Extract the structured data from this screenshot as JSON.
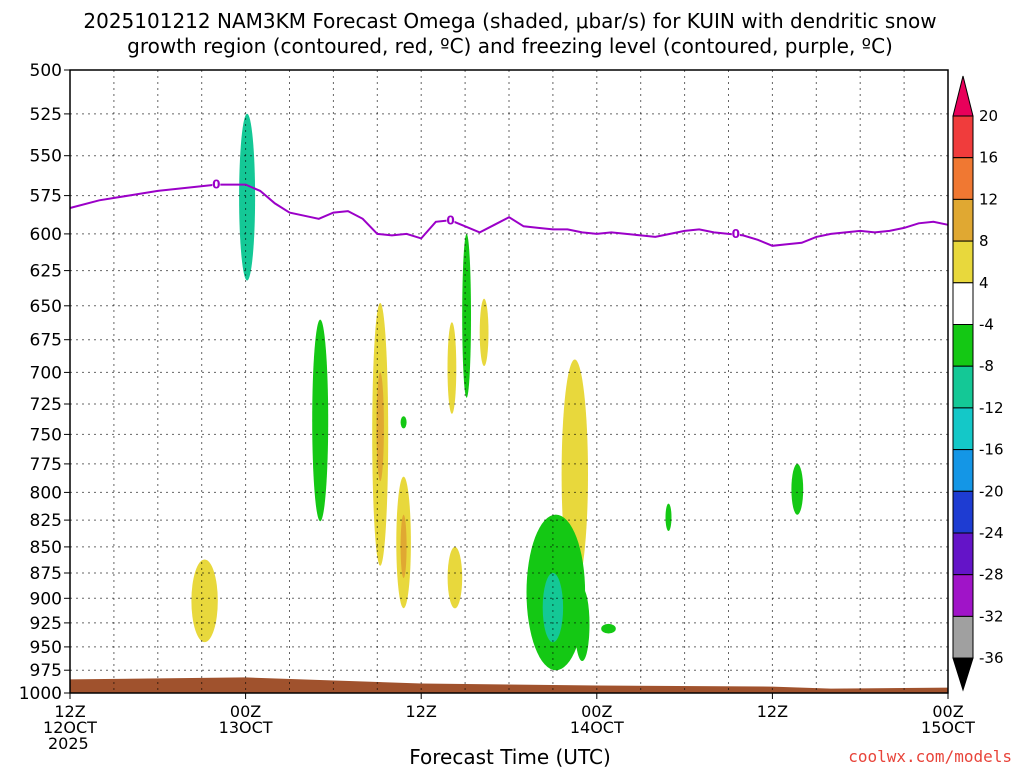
{
  "chart_data": {
    "type": "time-height",
    "title": "2025101212 NAM3KM Forecast Omega (shaded, μbar/s) for KUIN with dendritic snow",
    "subtitle": "growth region (contoured, red, ºC) and freezing level (contoured, purple, ºC)",
    "xlabel": "Forecast Time (UTC)",
    "credit": "coolwx.com/models",
    "y_ticks": [
      "500",
      "525",
      "550",
      "575",
      "600",
      "625",
      "650",
      "675",
      "700",
      "725",
      "750",
      "775",
      "800",
      "825",
      "850",
      "875",
      "900",
      "925",
      "950",
      "975",
      "1000"
    ],
    "y_range_mb": [
      500,
      1000
    ],
    "y_scale": "log-pressure",
    "x_range_hours": [
      0,
      60
    ],
    "x_ticks": [
      {
        "hour": 0,
        "line1": "12Z",
        "line2": "12OCT",
        "line3": "2025"
      },
      {
        "hour": 12,
        "line1": "00Z",
        "line2": "13OCT",
        "line3": ""
      },
      {
        "hour": 24,
        "line1": "12Z",
        "line2": "",
        "line3": ""
      },
      {
        "hour": 36,
        "line1": "00Z",
        "line2": "14OCT",
        "line3": ""
      },
      {
        "hour": 48,
        "line1": "12Z",
        "line2": "",
        "line3": ""
      },
      {
        "hour": 60,
        "line1": "00Z",
        "line2": "15OCT",
        "line3": ""
      }
    ],
    "grid": true,
    "colorbar": {
      "levels": [
        "20",
        "16",
        "12",
        "8",
        "4",
        "-4",
        "-8",
        "-12",
        "-16",
        "-20",
        "-24",
        "-28",
        "-32",
        "-36"
      ],
      "colors": [
        "#e8005a",
        "#f03c3c",
        "#f07832",
        "#e0a832",
        "#e8d83c",
        "#ffffff",
        "#14c814",
        "#14c896",
        "#14c8c8",
        "#1496e6",
        "#1e3cd2",
        "#6414c8",
        "#a014c8",
        "#a0a0a0",
        "#000000"
      ]
    },
    "freezing_level": {
      "label": "0",
      "color": "#9b00c8",
      "hours": [
        0,
        2,
        4,
        6,
        8,
        10,
        12,
        13,
        14,
        15,
        16,
        17,
        18,
        19,
        20,
        21,
        22,
        23,
        24,
        25,
        26,
        27,
        28,
        29,
        30,
        31,
        32,
        33,
        34,
        35,
        36,
        37,
        38,
        39,
        40,
        41,
        42,
        43,
        44,
        45,
        46,
        47,
        48,
        49,
        50,
        51,
        52,
        53,
        54,
        55,
        56,
        57,
        58,
        59,
        60
      ],
      "pressure_mb": [
        583,
        578,
        575,
        572,
        570,
        568,
        568,
        572,
        580,
        586,
        588,
        590,
        586,
        585,
        590,
        600,
        601,
        600,
        603,
        592,
        591,
        595,
        599,
        594,
        589,
        595,
        596,
        597,
        597,
        599,
        600,
        599,
        600,
        601,
        602,
        600,
        598,
        597,
        599,
        600,
        601,
        604,
        608,
        607,
        606,
        602,
        600,
        599,
        598,
        599,
        598,
        596,
        593,
        592,
        594
      ]
    },
    "omega_regions": [
      {
        "hour": 12.1,
        "p_top": 525,
        "p_bot": 632,
        "half_width_h": 0.55,
        "value": -8
      },
      {
        "hour": 9.2,
        "p_top": 862,
        "p_bot": 945,
        "half_width_h": 0.9,
        "value": 6
      },
      {
        "hour": 17.1,
        "p_top": 660,
        "p_bot": 826,
        "half_width_h": 0.55,
        "value": -6
      },
      {
        "hour": 21.2,
        "p_top": 648,
        "p_bot": 868,
        "half_width_h": 0.55,
        "value": 6
      },
      {
        "hour": 21.2,
        "p_top": 700,
        "p_bot": 790,
        "half_width_h": 0.25,
        "value": 10
      },
      {
        "hour": 22.8,
        "p_top": 735,
        "p_bot": 745,
        "half_width_h": 0.2,
        "value": -6
      },
      {
        "hour": 22.8,
        "p_top": 786,
        "p_bot": 910,
        "half_width_h": 0.5,
        "value": 6
      },
      {
        "hour": 22.8,
        "p_top": 820,
        "p_bot": 880,
        "half_width_h": 0.2,
        "value": 10
      },
      {
        "hour": 26.1,
        "p_top": 662,
        "p_bot": 733,
        "half_width_h": 0.3,
        "value": 6
      },
      {
        "hour": 27.1,
        "p_top": 600,
        "p_bot": 720,
        "half_width_h": 0.3,
        "value": -6
      },
      {
        "hour": 28.3,
        "p_top": 645,
        "p_bot": 695,
        "half_width_h": 0.3,
        "value": 6
      },
      {
        "hour": 26.3,
        "p_top": 850,
        "p_bot": 910,
        "half_width_h": 0.5,
        "value": 6
      },
      {
        "hour": 34.5,
        "p_top": 690,
        "p_bot": 890,
        "half_width_h": 0.9,
        "value": 6
      },
      {
        "hour": 33.2,
        "p_top": 820,
        "p_bot": 975,
        "half_width_h": 2.0,
        "value": -6
      },
      {
        "hour": 33.0,
        "p_top": 875,
        "p_bot": 945,
        "half_width_h": 0.7,
        "value": -10
      },
      {
        "hour": 35.0,
        "p_top": 890,
        "p_bot": 965,
        "half_width_h": 0.5,
        "value": -6
      },
      {
        "hour": 36.8,
        "p_top": 926,
        "p_bot": 936,
        "half_width_h": 0.5,
        "value": -6
      },
      {
        "hour": 40.9,
        "p_top": 810,
        "p_bot": 835,
        "half_width_h": 0.2,
        "value": -6
      },
      {
        "hour": 49.7,
        "p_top": 775,
        "p_bot": 820,
        "half_width_h": 0.4,
        "value": -6
      }
    ],
    "ground": {
      "color": "#a0522d",
      "p_top_left": 985,
      "p_top_right": 994
    }
  }
}
